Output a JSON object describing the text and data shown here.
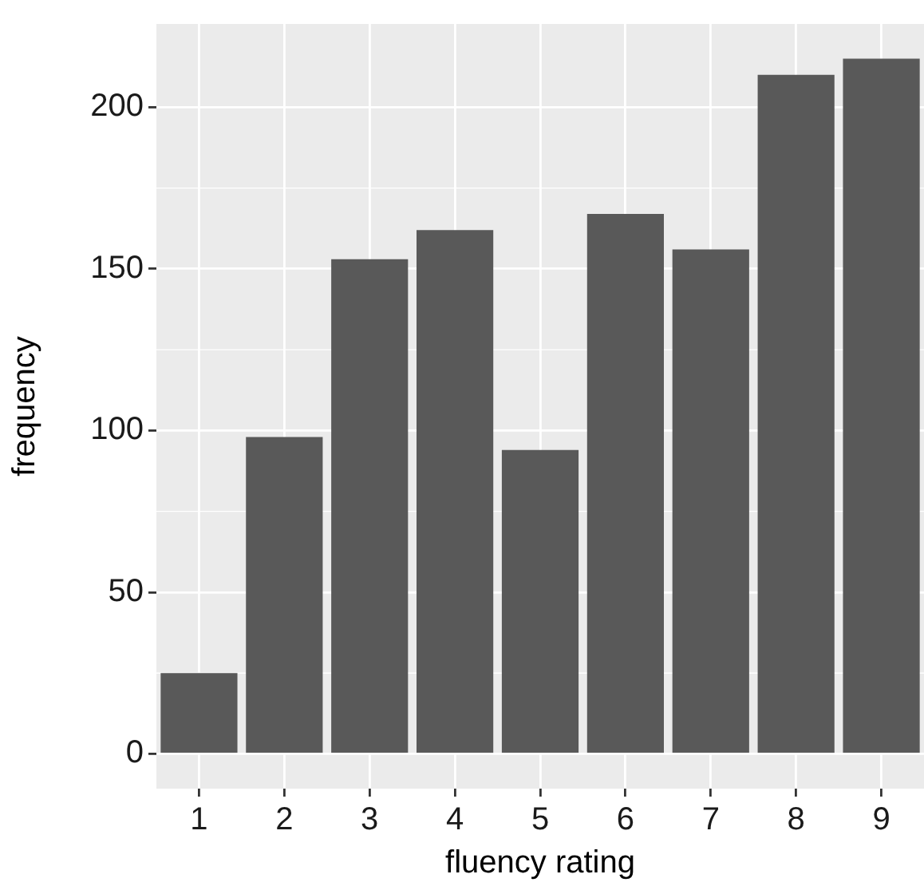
{
  "chart_data": {
    "type": "bar",
    "xlabel": "fluency rating",
    "ylabel": "frequency",
    "categories": [
      "1",
      "2",
      "3",
      "4",
      "5",
      "6",
      "7",
      "8",
      "9"
    ],
    "values": [
      25,
      98,
      153,
      162,
      94,
      167,
      156,
      210,
      215
    ],
    "color": "#595959",
    "ylim": [
      -10.75,
      225.75
    ],
    "yticks": [
      0,
      50,
      100,
      150,
      200
    ],
    "grid": true,
    "legend": false
  }
}
